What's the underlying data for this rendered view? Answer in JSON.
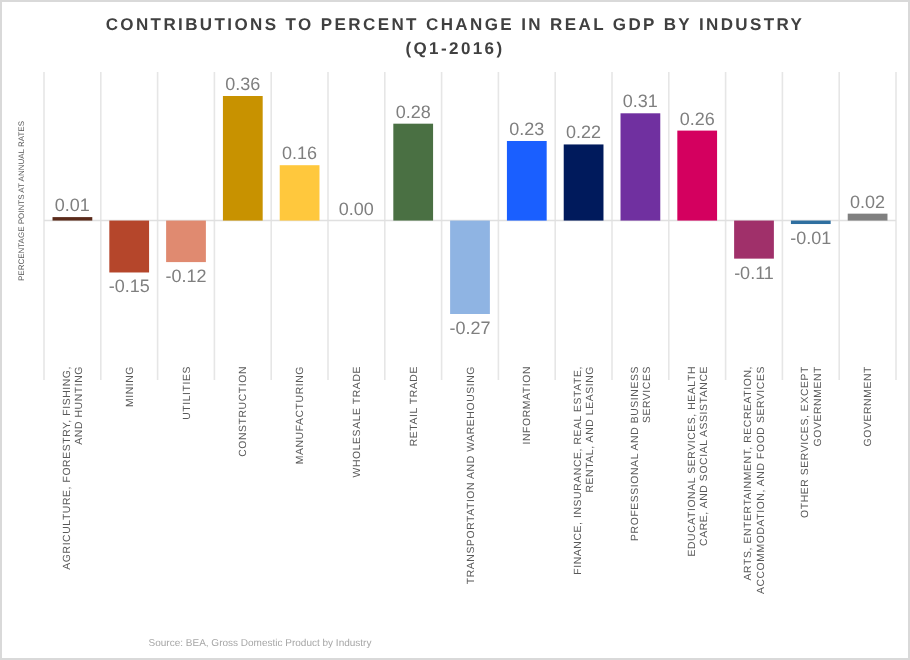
{
  "chart_data": {
    "type": "bar",
    "title": "CONTRIBUTIONS TO PERCENT CHANGE IN REAL GDP BY INDUSTRY",
    "subtitle": "(Q1-2016)",
    "ylabel": "PERCENTAGE POINTS AT ANNUAL RATES",
    "categories": [
      "AGRICULTURE, FORESTRY, FISHING, AND HUNTING",
      "MINING",
      "UTILITIES",
      "CONSTRUCTION",
      "MANUFACTURING",
      "WHOLESALE TRADE",
      "RETAIL TRADE",
      "TRANSPORTATION AND WAREHOUSING",
      "INFORMATION",
      "FINANCE, INSURANCE, REAL ESTATE, RENTAL, AND LEASING",
      "PROFESSIONAL AND BUSINESS SERVICES",
      "EDUCATIONAL SERVICES, HEALTH CARE, AND SOCIAL ASSISTANCE",
      "ARTS, ENTERTAINMENT, RECREATION, ACCOMMODATION, AND FOOD SERVICES",
      "OTHER SERVICES, EXCEPT GOVERNMENT",
      "GOVERNMENT"
    ],
    "values": [
      0.01,
      -0.15,
      -0.12,
      0.36,
      0.16,
      0.0,
      0.28,
      -0.27,
      0.23,
      0.22,
      0.31,
      0.26,
      -0.11,
      -0.01,
      0.02
    ],
    "colors": [
      "#5a2a1a",
      "#b5462b",
      "#e08a70",
      "#c89200",
      "#ffc83d",
      "#7f7f7f",
      "#4a7043",
      "#8fb4e3",
      "#1a5fff",
      "#001a5c",
      "#7030a0",
      "#d4005f",
      "#a0306a",
      "#2f6fa0",
      "#808080"
    ],
    "value_labels": [
      "0.01",
      "-0.15",
      "-0.12",
      "0.36",
      "0.16",
      "0.00",
      "0.28",
      "-0.27",
      "0.23",
      "0.22",
      "0.31",
      "0.26",
      "-0.11",
      "-0.01",
      "0.02"
    ],
    "grid": "x",
    "annotations": [
      "Source: BEA, Gross Domestic Product by Industry"
    ]
  }
}
